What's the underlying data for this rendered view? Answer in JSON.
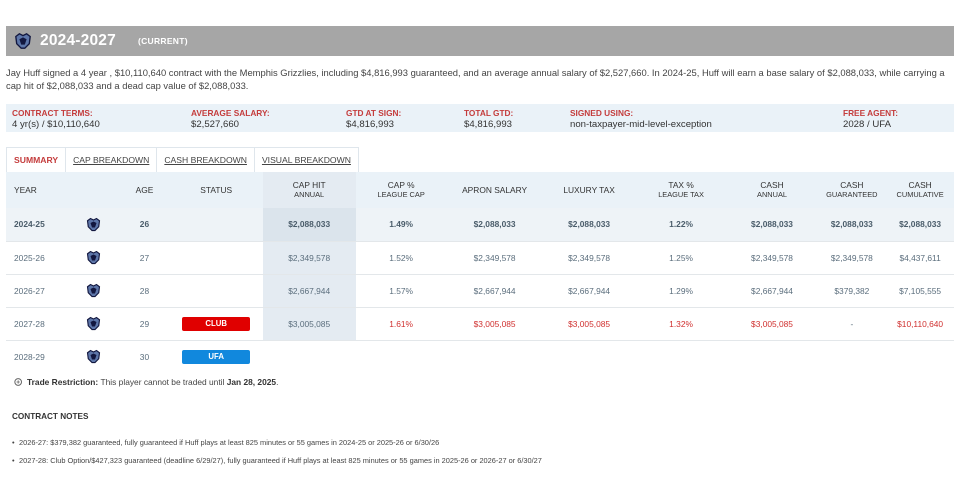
{
  "header": {
    "title": "2024-2027",
    "status": "(CURRENT)",
    "logo": "grizzlies-logo"
  },
  "summary": "Jay Huff signed a 4 year , $10,110,640 contract with the Memphis Grizzlies, including $4,816,993 guaranteed, and an average annual salary of $2,527,660. In 2024-25, Huff will earn a base salary of $2,088,033, while carrying a cap hit of $2,088,033 and a dead cap value of $2,088,033.",
  "terms": [
    {
      "label": "CONTRACT TERMS:",
      "value": "4 yr(s) / $10,110,640"
    },
    {
      "label": "AVERAGE SALARY:",
      "value": "$2,527,660"
    },
    {
      "label": "GTD AT SIGN:",
      "value": "$4,816,993"
    },
    {
      "label": "TOTAL GTD:",
      "value": "$4,816,993"
    },
    {
      "label": "SIGNED USING:",
      "value": "non-taxpayer-mid-level-exception"
    },
    {
      "label": "FREE AGENT:",
      "value": "2028 / UFA"
    }
  ],
  "tabs": [
    "SUMMARY",
    "CAP BREAKDOWN",
    "CASH BREAKDOWN",
    "VISUAL BREAKDOWN"
  ],
  "columns": {
    "year": "YEAR",
    "age": "AGE",
    "status": "STATUS",
    "cap_hit": "CAP HIT",
    "cap_hit_sub": "ANNUAL",
    "cap_pct": "CAP %",
    "cap_pct_sub": "LEAGUE CAP",
    "apron": "APRON SALARY",
    "luxury": "LUXURY TAX",
    "tax_pct": "TAX %",
    "tax_pct_sub": "LEAGUE TAX",
    "cash_annual": "CASH",
    "cash_annual_sub": "ANNUAL",
    "cash_gtd": "CASH",
    "cash_gtd_sub": "GUARANTEED",
    "cash_cum": "CASH",
    "cash_cum_sub": "CUMULATIVE"
  },
  "rows": [
    {
      "year": "2024-25",
      "age": "26",
      "status": "",
      "cap_hit": "$2,088,033",
      "cap_pct": "1.49%",
      "apron": "$2,088,033",
      "luxury": "$2,088,033",
      "tax_pct": "1.22%",
      "cash_annual": "$2,088,033",
      "cash_gtd": "$2,088,033",
      "cash_cum": "$2,088,033"
    },
    {
      "year": "2025-26",
      "age": "27",
      "status": "",
      "cap_hit": "$2,349,578",
      "cap_pct": "1.52%",
      "apron": "$2,349,578",
      "luxury": "$2,349,578",
      "tax_pct": "1.25%",
      "cash_annual": "$2,349,578",
      "cash_gtd": "$2,349,578",
      "cash_cum": "$4,437,611"
    },
    {
      "year": "2026-27",
      "age": "28",
      "status": "",
      "cap_hit": "$2,667,944",
      "cap_pct": "1.57%",
      "apron": "$2,667,944",
      "luxury": "$2,667,944",
      "tax_pct": "1.29%",
      "cash_annual": "$2,667,944",
      "cash_gtd": "$379,382",
      "cash_cum": "$7,105,555"
    },
    {
      "year": "2027-28",
      "age": "29",
      "status": "CLUB",
      "cap_hit": "$3,005,085",
      "cap_pct": "1.61%",
      "apron": "$3,005,085",
      "luxury": "$3,005,085",
      "tax_pct": "1.32%",
      "cash_annual": "$3,005,085",
      "cash_gtd": "-",
      "cash_cum": "$10,110,640"
    },
    {
      "year": "2028-29",
      "age": "30",
      "status": "UFA",
      "cap_hit": "",
      "cap_pct": "",
      "apron": "",
      "luxury": "",
      "tax_pct": "",
      "cash_annual": "",
      "cash_gtd": "",
      "cash_cum": ""
    }
  ],
  "trade_restriction": {
    "label": "Trade Restriction:",
    "text": "This player cannot be traded until",
    "date": "Jan 28, 2025",
    "end": "."
  },
  "notes_title": "CONTRACT NOTES",
  "notes": [
    "2026-27: $379,382 guaranteed, fully guaranteed if Huff plays at least 825 minutes or 55 games in 2024-25 or 2025-26 or 6/30/26",
    "2027-28: Club Option/$427,323 guaranteed (deadline 6/29/27), fully guaranteed if Huff plays at least 825 minutes or 55 games in 2025-26 or 2026-27 or 6/30/27"
  ],
  "colors": {
    "club": "#e00000",
    "ufa": "#1188dd",
    "accent": "#c43c3c",
    "header": "#a6a6a6"
  }
}
